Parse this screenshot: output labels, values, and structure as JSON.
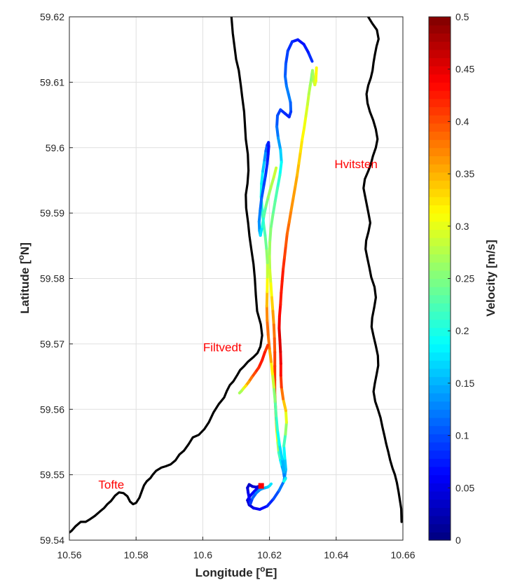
{
  "chart_data": {
    "type": "scatter",
    "title": "",
    "xlabel": "Longitude [°E]",
    "ylabel": "Latitude [°N]",
    "xlabel_parts": {
      "before": "Longitude [",
      "sup": "o",
      "after": "E]"
    },
    "ylabel_parts": {
      "before": "Latitude [",
      "sup": "o",
      "after": "N]"
    },
    "xlim": [
      10.56,
      10.66
    ],
    "ylim": [
      59.54,
      59.62
    ],
    "grid": true,
    "x_ticks": [
      10.56,
      10.58,
      10.6,
      10.62,
      10.64,
      10.66
    ],
    "x_tick_labels": [
      "10.56",
      "10.58",
      "10.6",
      "10.62",
      "10.64",
      "10.66"
    ],
    "y_ticks": [
      59.54,
      59.55,
      59.56,
      59.57,
      59.58,
      59.59,
      59.6,
      59.61,
      59.62
    ],
    "y_tick_labels": [
      "59.54",
      "59.55",
      "59.56",
      "59.57",
      "59.58",
      "59.59",
      "59.6",
      "59.61",
      "59.62"
    ],
    "colorbar": {
      "label": "Velocity [m/s]",
      "colormap": "jet",
      "range": [
        0,
        0.5
      ],
      "ticks": [
        0,
        0.05,
        0.1,
        0.15,
        0.2,
        0.25,
        0.3,
        0.35,
        0.4,
        0.45,
        0.5
      ],
      "tick_labels": [
        "0",
        "0.05",
        "0.1",
        "0.15",
        "0.2",
        "0.25",
        "0.3",
        "0.35",
        "0.4",
        "0.45",
        "0.5"
      ]
    },
    "place_labels": [
      {
        "text": "Hvitsten",
        "lon": 10.6395,
        "lat": 59.5975
      },
      {
        "text": "Filtvedt",
        "lon": 10.6001,
        "lat": 59.5695
      },
      {
        "text": "Tofte",
        "lon": 10.5687,
        "lat": 59.5485
      }
    ],
    "start_marker": {
      "lon": 10.6175,
      "lat": 59.5483,
      "color": "#ff0000"
    },
    "coastlines": [
      {
        "name": "west-shore",
        "lon": [
          10.6086,
          10.609,
          10.6095,
          10.61,
          10.6108,
          10.6114,
          10.6118,
          10.6124,
          10.6126,
          10.6129,
          10.6135,
          10.6137,
          10.6134,
          10.6129,
          10.613,
          10.6136,
          10.614,
          10.6146,
          10.6152,
          10.6156,
          10.6159,
          10.6163,
          10.6174,
          10.6178,
          10.6173,
          10.6164,
          10.6152,
          10.6136,
          10.6124,
          10.6112,
          10.6104,
          10.6092,
          10.6081,
          10.6072,
          10.6064,
          10.6048,
          10.6032,
          10.6018,
          10.6005,
          10.5988,
          10.597,
          10.5958,
          10.5944,
          10.593,
          10.5918,
          10.5904,
          10.5889,
          10.5876,
          10.586,
          10.585,
          10.5843,
          10.5832,
          10.5824,
          10.5818,
          10.581,
          10.58,
          10.5791,
          10.5782,
          10.5774,
          10.5762,
          10.5749,
          10.5737,
          10.5725,
          10.5714,
          10.5704,
          10.5692,
          10.5676,
          10.5662,
          10.5649,
          10.5634,
          10.5618,
          10.5606,
          10.5601
        ],
        "lat": [
          59.62,
          59.6175,
          59.6155,
          59.6135,
          59.6118,
          59.6095,
          59.6078,
          59.6055,
          59.6038,
          59.6013,
          59.599,
          59.5965,
          59.5945,
          59.5928,
          59.5908,
          59.5885,
          59.5865,
          59.5843,
          59.5822,
          59.58,
          59.5775,
          59.575,
          59.573,
          59.5713,
          59.5696,
          59.5686,
          59.568,
          59.5673,
          59.5666,
          59.566,
          59.5653,
          59.5643,
          59.5637,
          59.5628,
          59.5618,
          59.5608,
          59.5595,
          59.558,
          59.557,
          59.5561,
          59.5557,
          59.5547,
          59.5537,
          59.5531,
          59.5522,
          59.5516,
          59.5513,
          59.5511,
          59.5506,
          59.55,
          59.5495,
          59.549,
          59.5484,
          59.5476,
          59.5465,
          59.5457,
          59.5455,
          59.5459,
          59.5467,
          59.5472,
          59.5473,
          59.5468,
          59.546,
          59.5455,
          59.5449,
          59.5444,
          59.5437,
          59.5432,
          59.5428,
          59.5428,
          59.5421,
          59.5414,
          59.5412
        ]
      },
      {
        "name": "east-shore",
        "lon": [
          10.6496,
          10.6508,
          10.6522,
          10.6527,
          10.6521,
          10.6516,
          10.6512,
          10.6509,
          10.6504,
          10.6496,
          10.6491,
          10.6494,
          10.6501,
          10.6511,
          10.6519,
          10.6524,
          10.6519,
          10.651,
          10.6504,
          10.6496,
          10.6486,
          10.6482,
          10.6487,
          10.6492,
          10.6497,
          10.6502,
          10.6497,
          10.649,
          10.6488,
          10.6493,
          10.6499,
          10.6505,
          10.6515,
          10.6519,
          10.6514,
          10.6508,
          10.6506,
          10.6512,
          10.6519,
          10.6525,
          10.6526,
          10.6521,
          10.6516,
          10.6512,
          10.6517,
          10.6525,
          10.6533,
          10.6539,
          10.6545,
          10.655,
          10.6556,
          10.6562,
          10.6569,
          10.6576,
          10.6582,
          10.6587,
          10.6591,
          10.6595,
          10.6596
        ],
        "lat": [
          59.62,
          59.619,
          59.618,
          59.6166,
          59.6155,
          59.6142,
          59.613,
          59.6118,
          59.6107,
          59.6095,
          59.6082,
          59.6068,
          59.6055,
          59.6042,
          59.6028,
          59.6013,
          59.6,
          59.5987,
          59.5975,
          59.5964,
          59.5952,
          59.5938,
          59.5925,
          59.5912,
          59.5899,
          59.5885,
          59.5872,
          59.5858,
          59.5845,
          59.5832,
          59.5818,
          59.5802,
          59.5787,
          59.5771,
          59.5756,
          59.574,
          59.5726,
          59.5712,
          59.5697,
          59.5682,
          59.5667,
          59.5653,
          59.564,
          59.5627,
          59.5612,
          59.56,
          59.5587,
          59.5572,
          59.5559,
          59.5547,
          59.5535,
          59.5522,
          59.551,
          59.55,
          59.5488,
          59.5474,
          59.5461,
          59.5448,
          59.5428
        ]
      }
    ],
    "series": [
      {
        "lon": [
          10.6171,
          10.6155,
          10.6141,
          10.6134,
          10.6139,
          10.6152,
          10.6171,
          10.6193,
          10.6212,
          10.6229,
          10.6243,
          10.6249,
          10.6246,
          10.6243,
          10.6248,
          10.6251,
          10.6249,
          10.6241,
          10.6236,
          10.6234,
          10.6234,
          10.6233,
          10.6231,
          10.6229,
          10.623,
          10.6233,
          10.6235,
          10.6238,
          10.6241,
          10.6245,
          10.6249,
          10.6253,
          10.6259,
          10.6265,
          10.6271,
          10.6277,
          10.6283,
          10.6288,
          10.6293,
          10.6298,
          10.6304,
          10.6309,
          10.6314,
          10.6318,
          10.6322,
          10.6325,
          10.6327,
          10.6329,
          10.6331,
          10.6333,
          10.6336,
          10.6339,
          10.634,
          10.6341
        ],
        "lat": [
          59.5483,
          59.5475,
          59.5467,
          59.5461,
          59.5454,
          59.5449,
          59.5447,
          59.5452,
          59.5463,
          59.5476,
          59.549,
          59.5508,
          59.5525,
          59.5544,
          59.5562,
          59.558,
          59.5598,
          59.5616,
          59.5634,
          59.5652,
          59.567,
          59.5688,
          59.5706,
          59.5724,
          59.5742,
          59.576,
          59.5778,
          59.5796,
          59.5814,
          59.5832,
          59.585,
          59.5868,
          59.5886,
          59.5904,
          59.5922,
          59.594,
          59.5958,
          59.5976,
          59.5994,
          59.6012,
          59.603,
          59.6048,
          59.6066,
          59.6082,
          59.6095,
          59.6104,
          59.6112,
          59.6118,
          59.6109,
          59.6101,
          59.6096,
          59.6102,
          59.6113,
          59.6122
        ],
        "velocity": [
          0.05,
          0.07,
          0.06,
          0.05,
          0.04,
          0.05,
          0.06,
          0.07,
          0.09,
          0.11,
          0.13,
          0.15,
          0.17,
          0.2,
          0.24,
          0.28,
          0.32,
          0.36,
          0.4,
          0.42,
          0.44,
          0.45,
          0.46,
          0.45,
          0.44,
          0.43,
          0.42,
          0.43,
          0.42,
          0.41,
          0.4,
          0.39,
          0.38,
          0.37,
          0.36,
          0.36,
          0.35,
          0.34,
          0.33,
          0.32,
          0.31,
          0.3,
          0.29,
          0.28,
          0.27,
          0.26,
          0.25,
          0.26,
          0.27,
          0.28,
          0.29,
          0.3,
          0.31,
          0.32
        ]
      },
      {
        "lon": [
          10.6328,
          10.6316,
          10.6303,
          10.6285,
          10.6268,
          10.6255,
          10.6249,
          10.6247,
          10.6251,
          10.6257,
          10.6263,
          10.6264,
          10.6259,
          10.6247,
          10.6233,
          10.6224,
          10.6222,
          10.6226,
          10.6233,
          10.6236,
          10.6231,
          10.6224,
          10.6217,
          10.621,
          10.6204,
          10.6201,
          10.62,
          10.6201,
          10.6204,
          10.6207,
          10.621,
          10.6213,
          10.6215,
          10.6216,
          10.6216,
          10.6216,
          10.6216,
          10.6218,
          10.622,
          10.6222,
          10.6225,
          10.6228,
          10.6233,
          10.6238,
          10.6242,
          10.6244,
          10.6246,
          10.6248,
          10.6248,
          10.6246,
          10.6243
        ],
        "lat": [
          59.6132,
          59.6146,
          59.6158,
          59.6165,
          59.6162,
          59.6148,
          59.6128,
          59.6109,
          59.6094,
          59.6082,
          59.6069,
          59.6055,
          59.6047,
          59.6052,
          59.6058,
          59.6049,
          59.6032,
          59.6015,
          59.5997,
          59.5978,
          59.5958,
          59.5938,
          59.5918,
          59.5897,
          59.5876,
          59.5855,
          59.5834,
          59.5813,
          59.5792,
          59.5771,
          59.575,
          59.5729,
          59.5708,
          59.5687,
          59.5666,
          59.5645,
          59.5624,
          59.5604,
          59.5584,
          59.5566,
          59.5549,
          59.5534,
          59.5522,
          59.5512,
          59.5505,
          59.5498,
          59.5495,
          59.5495,
          59.5494,
          59.5492,
          59.549
        ],
        "velocity": [
          0.09,
          0.08,
          0.07,
          0.07,
          0.08,
          0.09,
          0.1,
          0.11,
          0.12,
          0.13,
          0.12,
          0.1,
          0.08,
          0.08,
          0.09,
          0.1,
          0.11,
          0.13,
          0.15,
          0.18,
          0.2,
          0.22,
          0.23,
          0.24,
          0.25,
          0.26,
          0.27,
          0.28,
          0.3,
          0.32,
          0.35,
          0.37,
          0.39,
          0.4,
          0.41,
          0.41,
          0.4,
          0.38,
          0.35,
          0.32,
          0.28,
          0.24,
          0.2,
          0.16,
          0.13,
          0.12,
          0.13,
          0.15,
          0.17,
          0.19,
          0.2
        ]
      },
      {
        "lon": [
          10.6244,
          10.6238,
          10.623,
          10.6224,
          10.622,
          10.6217,
          10.6213,
          10.6209,
          10.6205,
          10.62,
          10.6196,
          10.6193,
          10.6192,
          10.6193,
          10.6194,
          10.6194,
          10.6191,
          10.6187,
          10.6182,
          10.6178,
          10.6175,
          10.6176,
          10.618,
          10.6185,
          10.6189,
          10.6193,
          10.6197,
          10.6198,
          10.6196,
          10.6193,
          10.6188,
          10.6182,
          10.6176,
          10.6172,
          10.6169,
          10.617,
          10.6173,
          10.6178,
          10.6183,
          10.6189,
          10.6196,
          10.6204,
          10.6213,
          10.622
        ],
        "lat": [
          59.5504,
          59.5524,
          59.5546,
          59.5568,
          59.559,
          59.5612,
          59.5634,
          59.5654,
          59.5673,
          59.5693,
          59.5714,
          59.5736,
          59.5758,
          59.578,
          59.5802,
          59.5824,
          59.5846,
          59.5866,
          59.5885,
          59.5905,
          59.5925,
          59.5945,
          59.5964,
          59.5981,
          59.5995,
          59.6004,
          59.6008,
          59.6002,
          59.599,
          59.5975,
          59.5957,
          59.5939,
          59.5922,
          59.5904,
          59.5887,
          59.5873,
          59.5866,
          59.5879,
          59.5895,
          59.591,
          59.5924,
          59.5939,
          59.5955,
          59.5969
        ],
        "velocity": [
          0.14,
          0.16,
          0.18,
          0.2,
          0.22,
          0.24,
          0.27,
          0.3,
          0.34,
          0.37,
          0.39,
          0.38,
          0.36,
          0.33,
          0.3,
          0.27,
          0.25,
          0.23,
          0.22,
          0.21,
          0.2,
          0.19,
          0.17,
          0.15,
          0.12,
          0.1,
          0.08,
          0.07,
          0.07,
          0.08,
          0.09,
          0.1,
          0.11,
          0.12,
          0.13,
          0.14,
          0.16,
          0.19,
          0.22,
          0.24,
          0.26,
          0.27,
          0.28,
          0.29
        ]
      },
      {
        "lon": [
          10.6195,
          10.6186,
          10.6178,
          10.6168,
          10.6157,
          10.6147,
          10.6138,
          10.6129,
          10.6122,
          10.6116,
          10.611
        ],
        "lat": [
          59.5698,
          59.5687,
          59.5675,
          59.5664,
          59.5656,
          59.5649,
          59.5642,
          59.5636,
          59.5632,
          59.5628,
          59.5625
        ],
        "velocity": [
          0.4,
          0.42,
          0.43,
          0.42,
          0.41,
          0.39,
          0.37,
          0.34,
          0.31,
          0.28,
          0.26
        ]
      },
      {
        "lon": [
          10.6171,
          10.6161,
          10.6149,
          10.6139,
          10.6134,
          10.6136,
          10.6139,
          10.6141,
          10.6143,
          10.6149,
          10.616,
          10.6171,
          10.618,
          10.6187,
          10.6194,
          10.62,
          10.6205
        ],
        "lat": [
          59.5483,
          59.5481,
          59.5482,
          59.5485,
          59.548,
          59.5473,
          59.5465,
          59.5459,
          59.5456,
          59.5464,
          59.5472,
          59.5477,
          59.5479,
          59.548,
          59.5481,
          59.5483,
          59.5486
        ],
        "velocity": [
          0.04,
          0.05,
          0.04,
          0.03,
          0.04,
          0.05,
          0.06,
          0.07,
          0.08,
          0.1,
          0.12,
          0.13,
          0.14,
          0.15,
          0.16,
          0.17,
          0.18
        ]
      }
    ]
  }
}
